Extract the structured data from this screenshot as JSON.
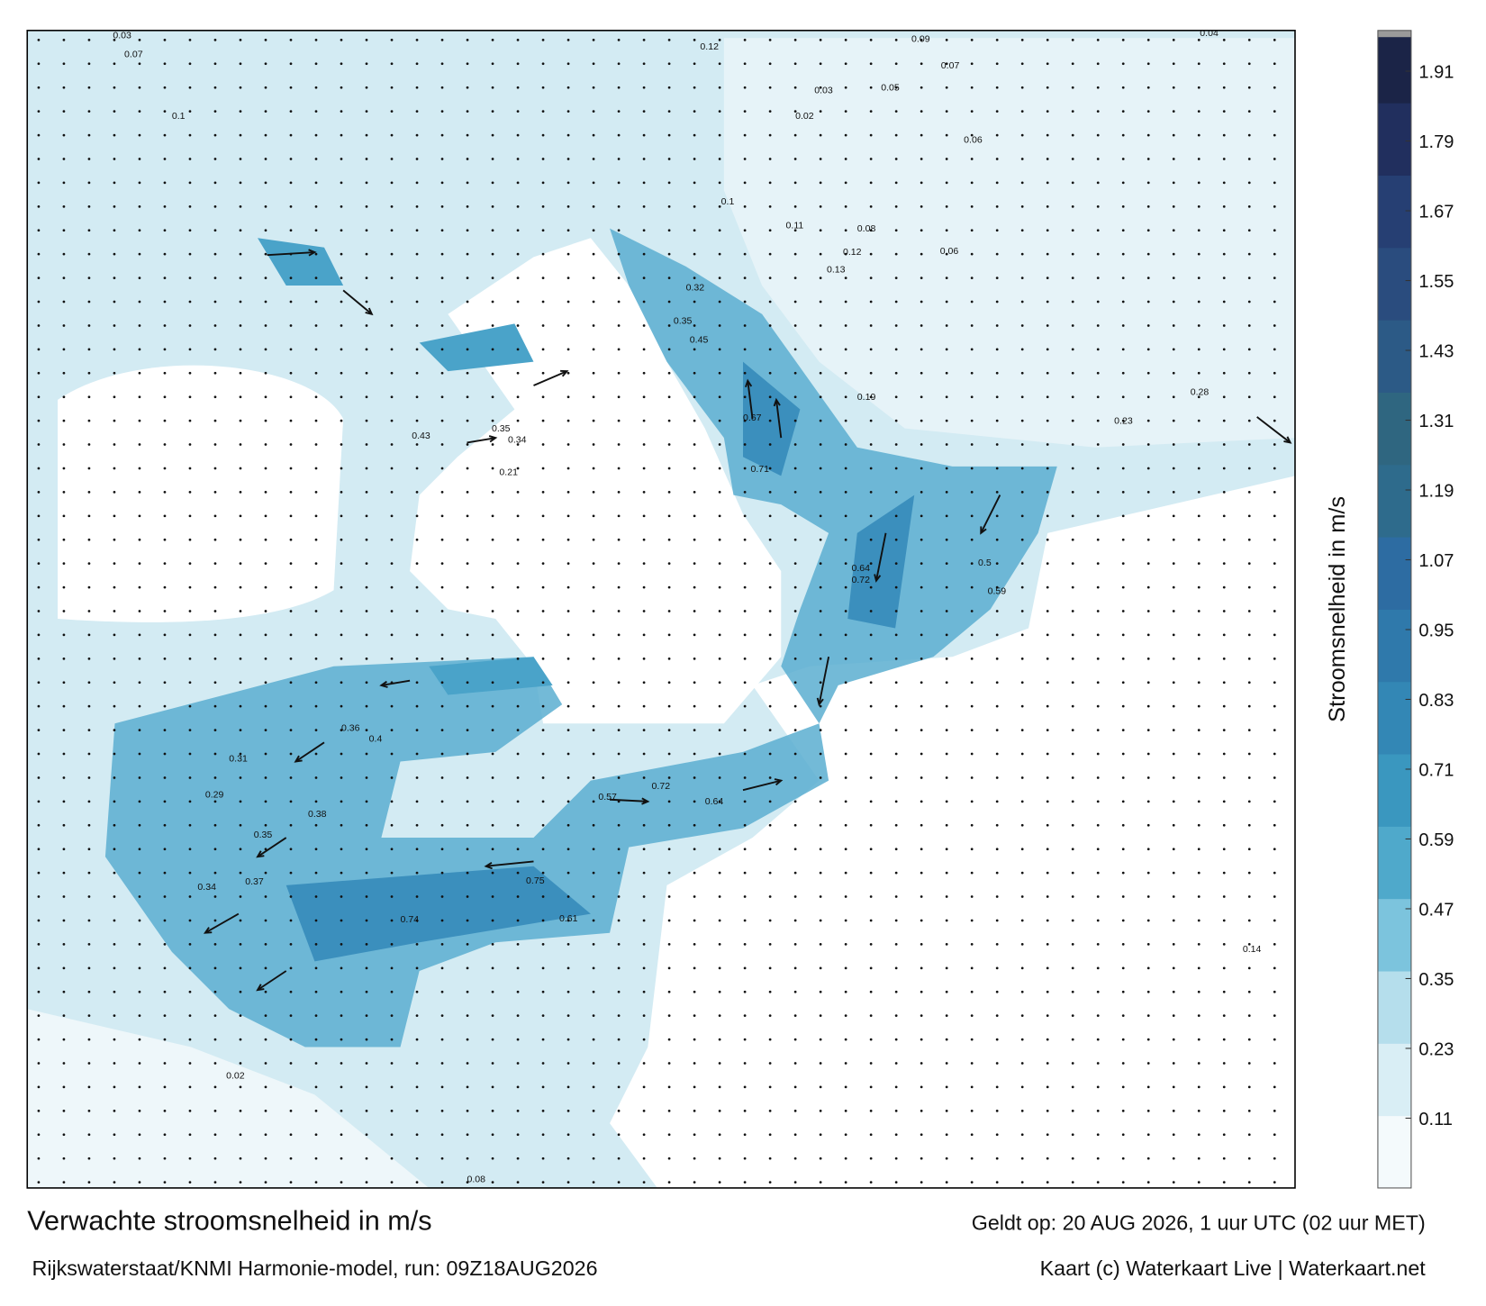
{
  "header": {
    "title": "Verwachte stroomsnelheid in m/s",
    "source": "Rijkswaterstaat/KNMI Harmonie-model, run: 09Z18AUG2026",
    "valid": "Geldt op: 20 AUG 2026, 1 uur UTC (02 uur MET)",
    "credit": "Kaart (c) Waterkaart Live | Waterkaart.net"
  },
  "colorbar": {
    "label": "Stroomsnelheid in m/s",
    "ylim": [
      -0.01,
      1.98
    ],
    "yticks": [
      {
        "value": 0.11,
        "label": "0.11"
      },
      {
        "value": 0.23,
        "label": "0.23"
      },
      {
        "value": 0.35,
        "label": "0.35"
      },
      {
        "value": 0.47,
        "label": "0.47"
      },
      {
        "value": 0.59,
        "label": "0.59"
      },
      {
        "value": 0.71,
        "label": "0.71"
      },
      {
        "value": 0.83,
        "label": "0.83"
      },
      {
        "value": 0.95,
        "label": "0.95"
      },
      {
        "value": 1.07,
        "label": "1.07"
      },
      {
        "value": 1.19,
        "label": "1.19"
      },
      {
        "value": 1.31,
        "label": "1.31"
      },
      {
        "value": 1.43,
        "label": "1.43"
      },
      {
        "value": 1.55,
        "label": "1.55"
      },
      {
        "value": 1.67,
        "label": "1.67"
      },
      {
        "value": 1.79,
        "label": "1.79"
      },
      {
        "value": 1.91,
        "label": "1.91"
      }
    ],
    "colors": [
      "#f4fafc",
      "#d9eef5",
      "#b5deec",
      "#7cc4dd",
      "#4fa9cb",
      "#3a97bf",
      "#3387b5",
      "#2f79ab",
      "#2d6ca2",
      "#2e6b8c",
      "#2f6680",
      "#2c5a86",
      "#2a4c7e",
      "#263f73",
      "#212f5e",
      "#1b2447"
    ]
  },
  "map": {
    "labels": [
      0.03,
      0.07,
      0.12,
      0.09,
      0.04,
      0.07,
      0.05,
      0.03,
      0.02,
      0.1,
      0.06,
      0.1,
      0.11,
      0.08,
      0.12,
      0.06,
      0.13,
      0.32,
      0.35,
      0.45,
      0.67,
      0.71,
      0.64,
      0.72,
      0.36,
      0.4,
      0.31,
      0.29,
      0.38,
      0.35,
      0.34,
      0.37,
      0.75,
      0.61,
      0.74,
      0.57,
      0.72,
      0.64,
      0.5,
      0.59,
      0.21,
      0.34,
      0.35,
      0.43,
      0.23,
      0.28,
      0.19,
      0.14,
      0.08,
      0.02
    ]
  }
}
